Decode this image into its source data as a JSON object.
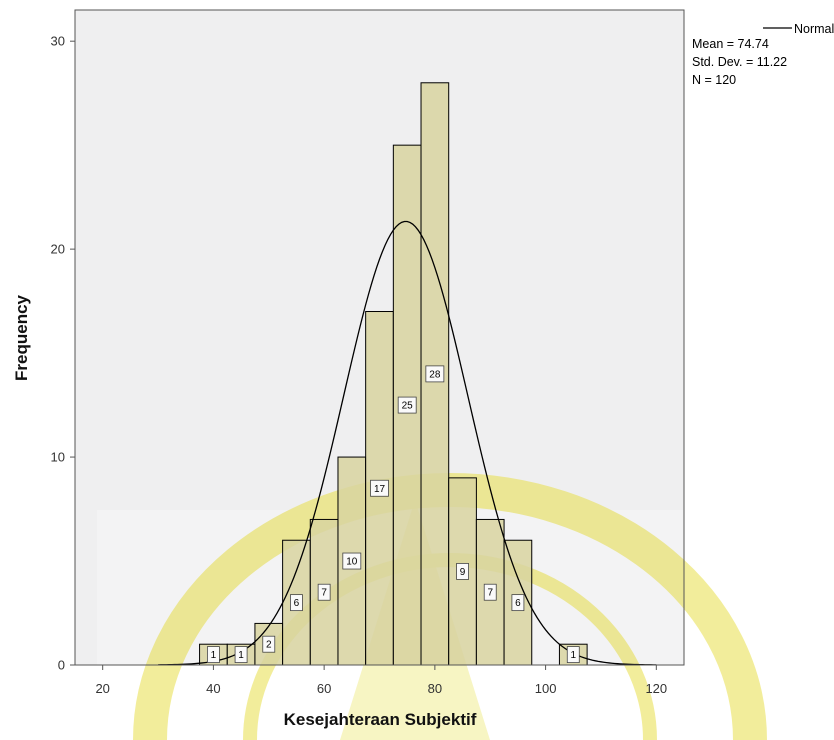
{
  "chart_data": {
    "type": "histogram",
    "xlabel": "Kesejahteraan Subjektif",
    "ylabel": "Frequency",
    "xlim": [
      15,
      125
    ],
    "ylim": [
      0,
      31.5
    ],
    "xticks": [
      20,
      40,
      60,
      80,
      100,
      120
    ],
    "xtick_labels": [
      "20",
      "40",
      "60",
      "80",
      "100",
      "120"
    ],
    "yticks": [
      0,
      10,
      20,
      30
    ],
    "ytick_labels": [
      "0",
      "10",
      "20",
      "30"
    ],
    "bin_width": 5,
    "bins": [
      {
        "start": 37.5,
        "end": 42.5,
        "count": 1,
        "label": "1"
      },
      {
        "start": 42.5,
        "end": 47.5,
        "count": 1,
        "label": "1"
      },
      {
        "start": 47.5,
        "end": 52.5,
        "count": 2,
        "label": "2"
      },
      {
        "start": 52.5,
        "end": 57.5,
        "count": 6,
        "label": "6"
      },
      {
        "start": 57.5,
        "end": 62.5,
        "count": 7,
        "label": "7"
      },
      {
        "start": 62.5,
        "end": 67.5,
        "count": 10,
        "label": "10"
      },
      {
        "start": 67.5,
        "end": 72.5,
        "count": 17,
        "label": "17"
      },
      {
        "start": 72.5,
        "end": 77.5,
        "count": 25,
        "label": "25"
      },
      {
        "start": 77.5,
        "end": 82.5,
        "count": 28,
        "label": "28"
      },
      {
        "start": 82.5,
        "end": 87.5,
        "count": 9,
        "label": "9"
      },
      {
        "start": 87.5,
        "end": 92.5,
        "count": 7,
        "label": "7"
      },
      {
        "start": 92.5,
        "end": 97.5,
        "count": 6,
        "label": "6"
      },
      {
        "start": 102.5,
        "end": 107.5,
        "count": 1,
        "label": "1"
      }
    ],
    "normal_curve": {
      "mean": 74.74,
      "std": 11.22,
      "n": 120,
      "bin_width": 5
    },
    "legend": {
      "line_label": "Normal",
      "mean_text": "Mean = 74.74",
      "std_text": "Std. Dev. = 11.22",
      "n_text": "N = 120",
      "position": "top-right"
    },
    "grid": false
  },
  "colors": {
    "plot_bg": "#efeff0",
    "bar_fill": "#d8d3a0",
    "bar_stroke": "#000000",
    "curve": "#000000",
    "watermark": "#e8df4a"
  }
}
